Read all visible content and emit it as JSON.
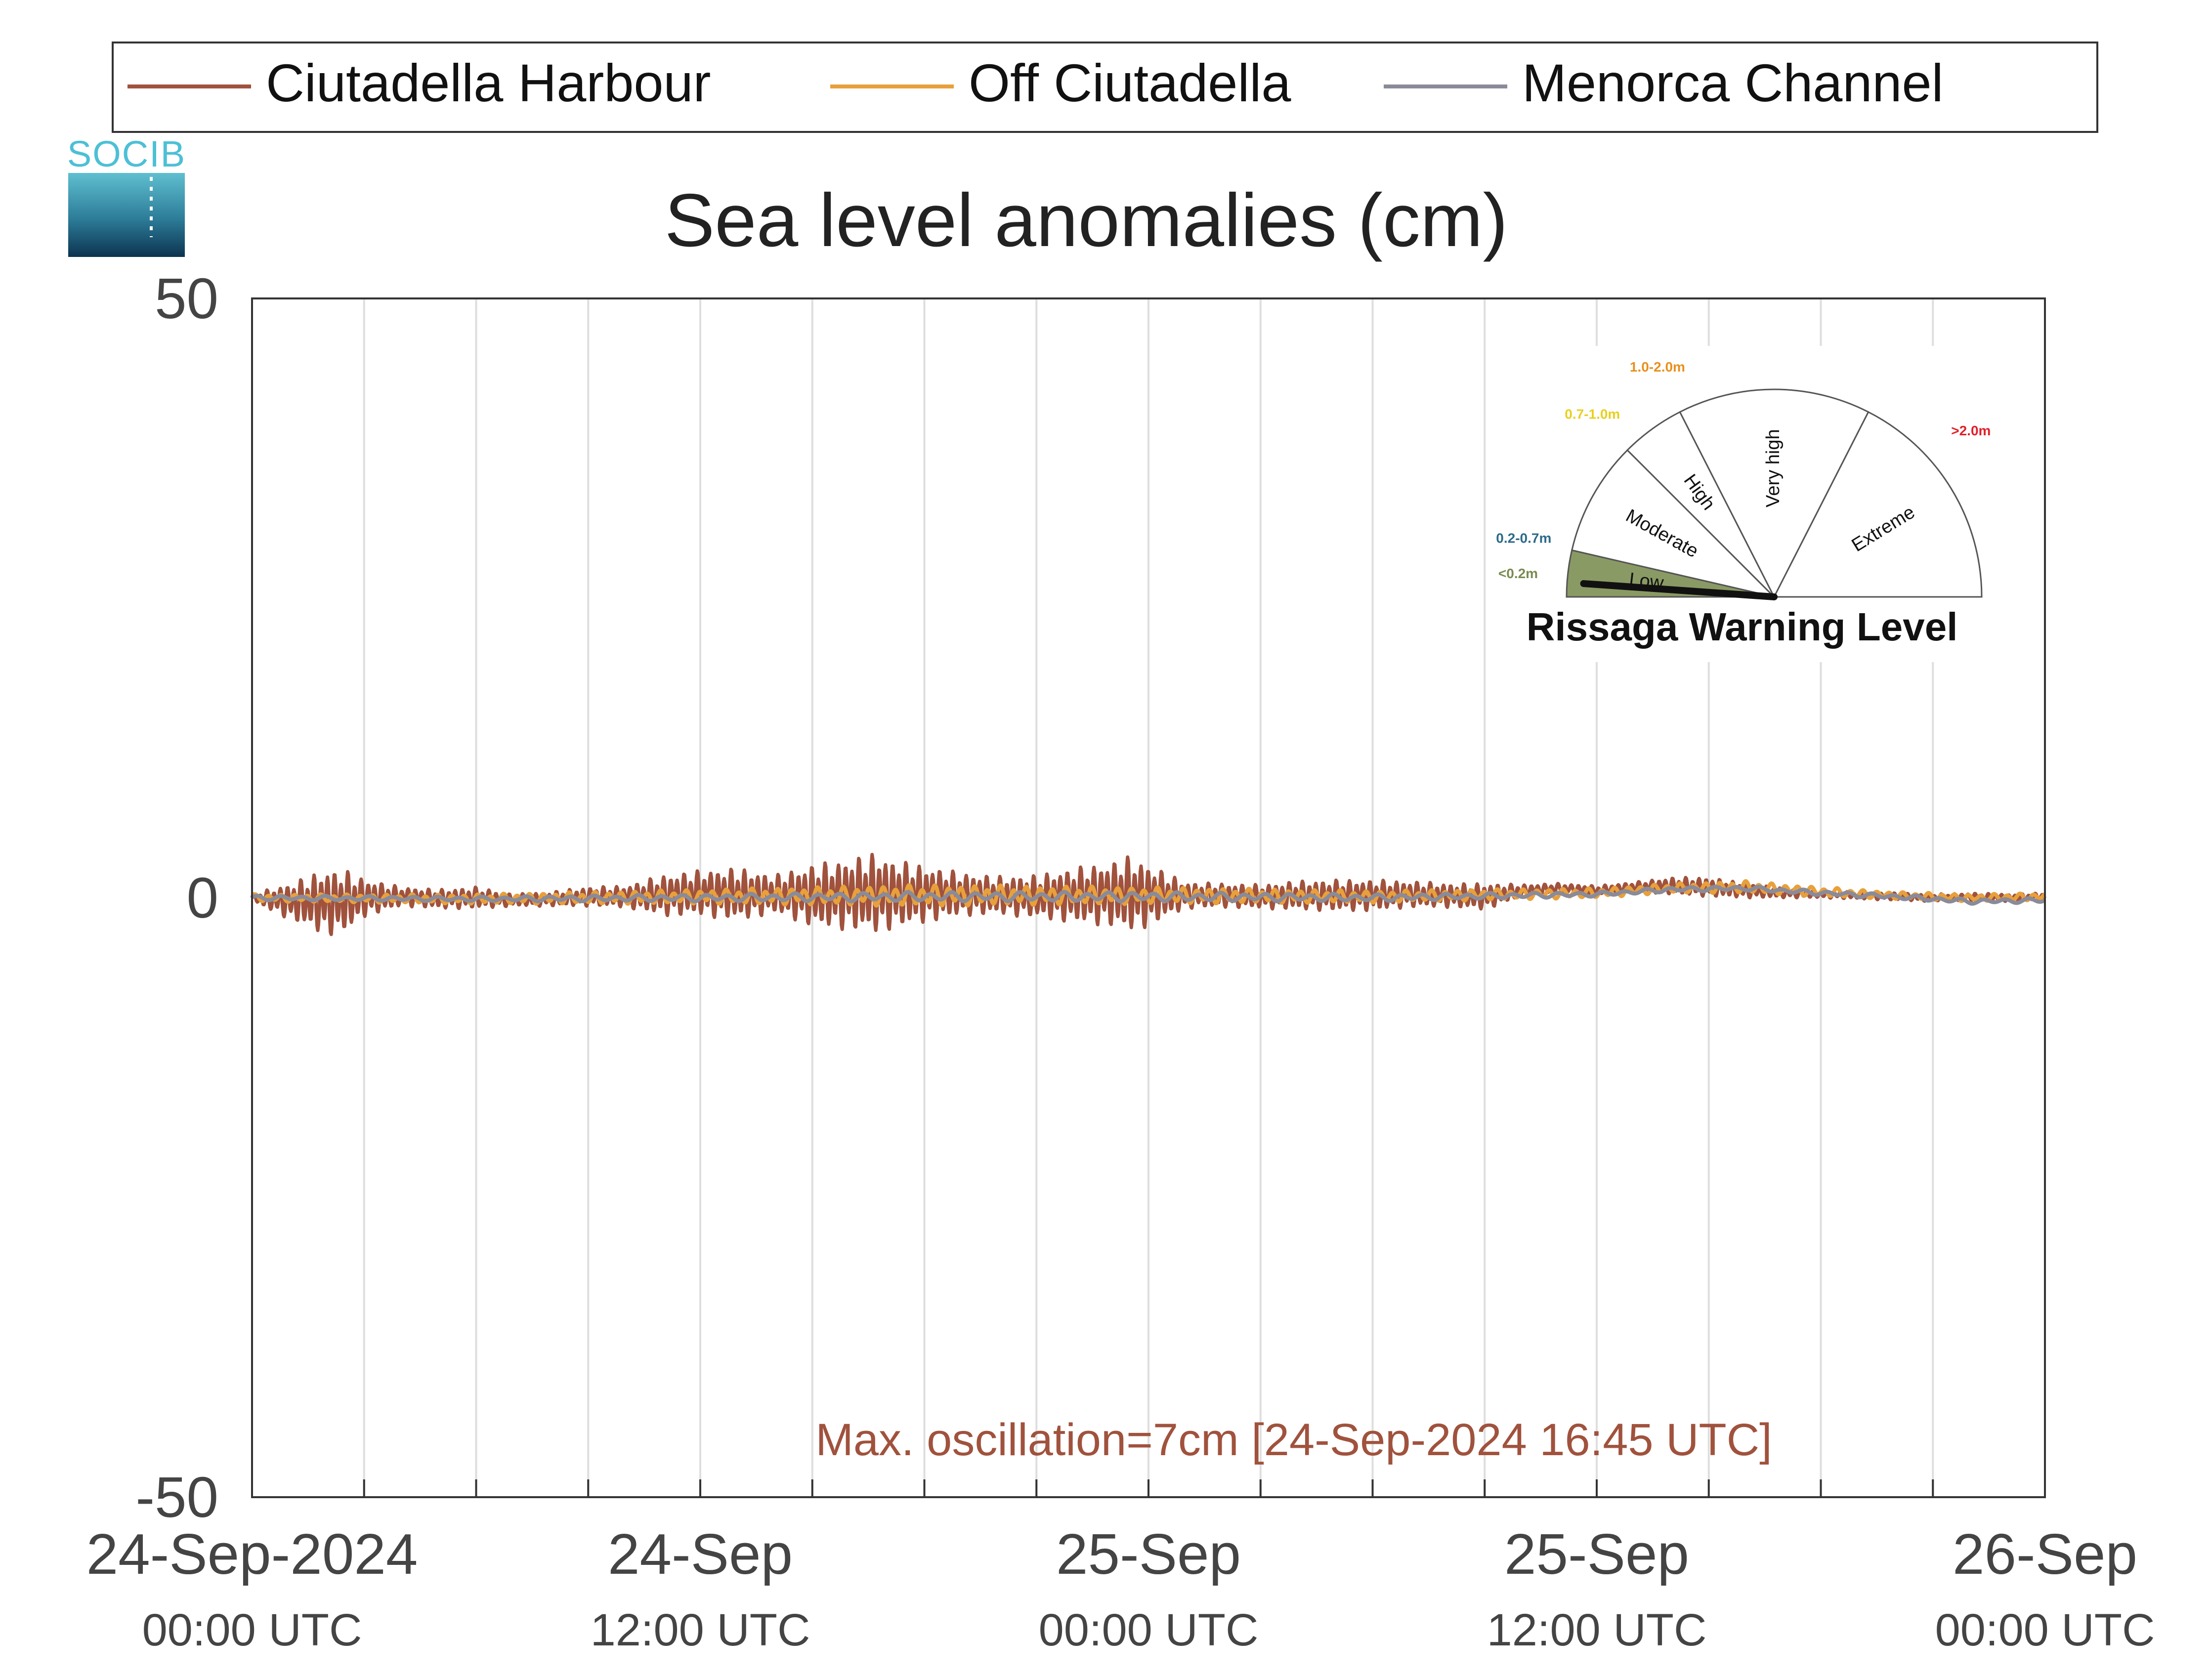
{
  "chart_data": {
    "type": "line",
    "title": "Sea level anomalies (cm)",
    "logo_text": "SOCIB",
    "xlabel": "",
    "ylabel": "",
    "ylim": [
      -50,
      50
    ],
    "xlim_hours": [
      0,
      48
    ],
    "grid": "vertical",
    "legend_position": "top",
    "y_ticks": [
      {
        "value": 50,
        "label": "50"
      },
      {
        "value": 0,
        "label": "0"
      },
      {
        "value": -50,
        "label": "-50"
      }
    ],
    "x_ticks": [
      {
        "value": 0,
        "line1": "24-Sep-2024",
        "line2": "00:00 UTC"
      },
      {
        "value": 12,
        "line1": "24-Sep",
        "line2": "12:00 UTC"
      },
      {
        "value": 24,
        "line1": "25-Sep",
        "line2": "00:00 UTC"
      },
      {
        "value": 36,
        "line1": "25-Sep",
        "line2": "12:00 UTC"
      },
      {
        "value": 48,
        "line1": "26-Sep",
        "line2": "00:00 UTC"
      }
    ],
    "gridline_hours": [
      3,
      6,
      9,
      12,
      15,
      18,
      21,
      24,
      27,
      30,
      33,
      36,
      39,
      42,
      45
    ],
    "annotation": "Max. oscillation=7cm [24-Sep-2024 16:45 UTC]",
    "series": [
      {
        "name": "Ciutadella Harbour",
        "color": "#a0523d",
        "x_hours": [
          0,
          1,
          2,
          2.5,
          3,
          4,
          5,
          6,
          7,
          8,
          9,
          10,
          11,
          12,
          13,
          14,
          15,
          15.5,
          16,
          16.75,
          17,
          18,
          19,
          20,
          21,
          22,
          23,
          23.5,
          24,
          25,
          26,
          27,
          28,
          29,
          30,
          31,
          32,
          33,
          34,
          35,
          36,
          37,
          38,
          39,
          40,
          41,
          42,
          43,
          44,
          45,
          46,
          47,
          48
        ],
        "amplitude": [
          0.3,
          1.5,
          2.8,
          2.6,
          1.6,
          0.8,
          0.8,
          0.9,
          0.5,
          0.6,
          0.8,
          0.9,
          1.7,
          1.9,
          2.2,
          1.6,
          2.6,
          2.8,
          3.0,
          3.4,
          3.0,
          2.4,
          1.8,
          1.6,
          1.8,
          2.3,
          2.7,
          3.2,
          2.6,
          1.1,
          1.0,
          1.0,
          1.2,
          1.3,
          1.3,
          1.1,
          1.0,
          1.1,
          0.5,
          0.4,
          0.4,
          0.4,
          0.7,
          0.8,
          0.6,
          0.4,
          0.3,
          0.3,
          0.3,
          0.3,
          0.3,
          0.3,
          0.3
        ],
        "baseline": [
          0,
          -0.3,
          -0.4,
          -0.3,
          0,
          0.1,
          -0.1,
          0,
          -0.2,
          -0.1,
          0.1,
          0.1,
          0.2,
          0.4,
          0.3,
          0.3,
          0.2,
          0.2,
          0.3,
          0.4,
          0.3,
          0.3,
          0.3,
          0.2,
          0.1,
          0.2,
          0.3,
          0.3,
          0.2,
          0.2,
          0.2,
          0.1,
          0.2,
          0.2,
          0.2,
          0.3,
          0.2,
          0.1,
          0.6,
          0.8,
          0.6,
          0.9,
          1.0,
          0.9,
          0.6,
          0.4,
          0.3,
          0.2,
          0.1,
          0.0,
          0.1,
          0.0,
          0.1
        ]
      },
      {
        "name": "Off Ciutadella",
        "color": "#e8a03c",
        "x_hours": [
          0,
          6,
          12,
          18,
          24,
          30,
          36,
          38,
          40,
          42,
          44,
          46,
          48
        ],
        "amplitude": [
          0.3,
          0.4,
          0.6,
          0.9,
          0.7,
          0.5,
          0.4,
          0.4,
          0.5,
          0.4,
          0.3,
          0.3,
          0.3
        ],
        "baseline": [
          0,
          -0.1,
          0.1,
          0.2,
          0.2,
          0.1,
          0.4,
          0.8,
          0.9,
          0.5,
          0.2,
          0.0,
          0.1
        ]
      },
      {
        "name": "Menorca Channel",
        "color": "#8a8b99",
        "x_hours": [
          0,
          6,
          12,
          18,
          24,
          30,
          36,
          38,
          40,
          42,
          44,
          46,
          48
        ],
        "amplitude": [
          0.2,
          0.2,
          0.3,
          0.4,
          0.4,
          0.3,
          0.2,
          0.2,
          0.2,
          0.2,
          0.2,
          0.2,
          0.2
        ],
        "baseline": [
          0,
          -0.1,
          0.0,
          0.1,
          0.1,
          0.0,
          0.3,
          0.7,
          0.8,
          0.4,
          0.1,
          -0.3,
          -0.2
        ]
      }
    ],
    "gauge": {
      "title": "Rissaga Warning Level",
      "needle_level": 0.0,
      "segments": [
        {
          "label": "Low",
          "range_label": "<0.2m",
          "range_color": "#7a8a50",
          "start_deg": 180,
          "end_deg": 167,
          "fill": "#8a9a64"
        },
        {
          "label": "Moderate",
          "range_label": "0.2-0.7m",
          "range_color": "#2d6a8a",
          "start_deg": 167,
          "end_deg": 135,
          "fill": "#ffffff"
        },
        {
          "label": "High",
          "range_label": "0.7-1.0m",
          "range_color": "#e8d020",
          "start_deg": 135,
          "end_deg": 117,
          "fill": "#ffffff"
        },
        {
          "label": "Very high",
          "range_label": "1.0-2.0m",
          "range_color": "#e8901c",
          "start_deg": 117,
          "end_deg": 63,
          "fill": "#ffffff"
        },
        {
          "label": "Extreme",
          "range_label": ">2.0m",
          "range_color": "#e0202a",
          "start_deg": 63,
          "end_deg": 0,
          "fill": "#ffffff"
        }
      ]
    }
  }
}
